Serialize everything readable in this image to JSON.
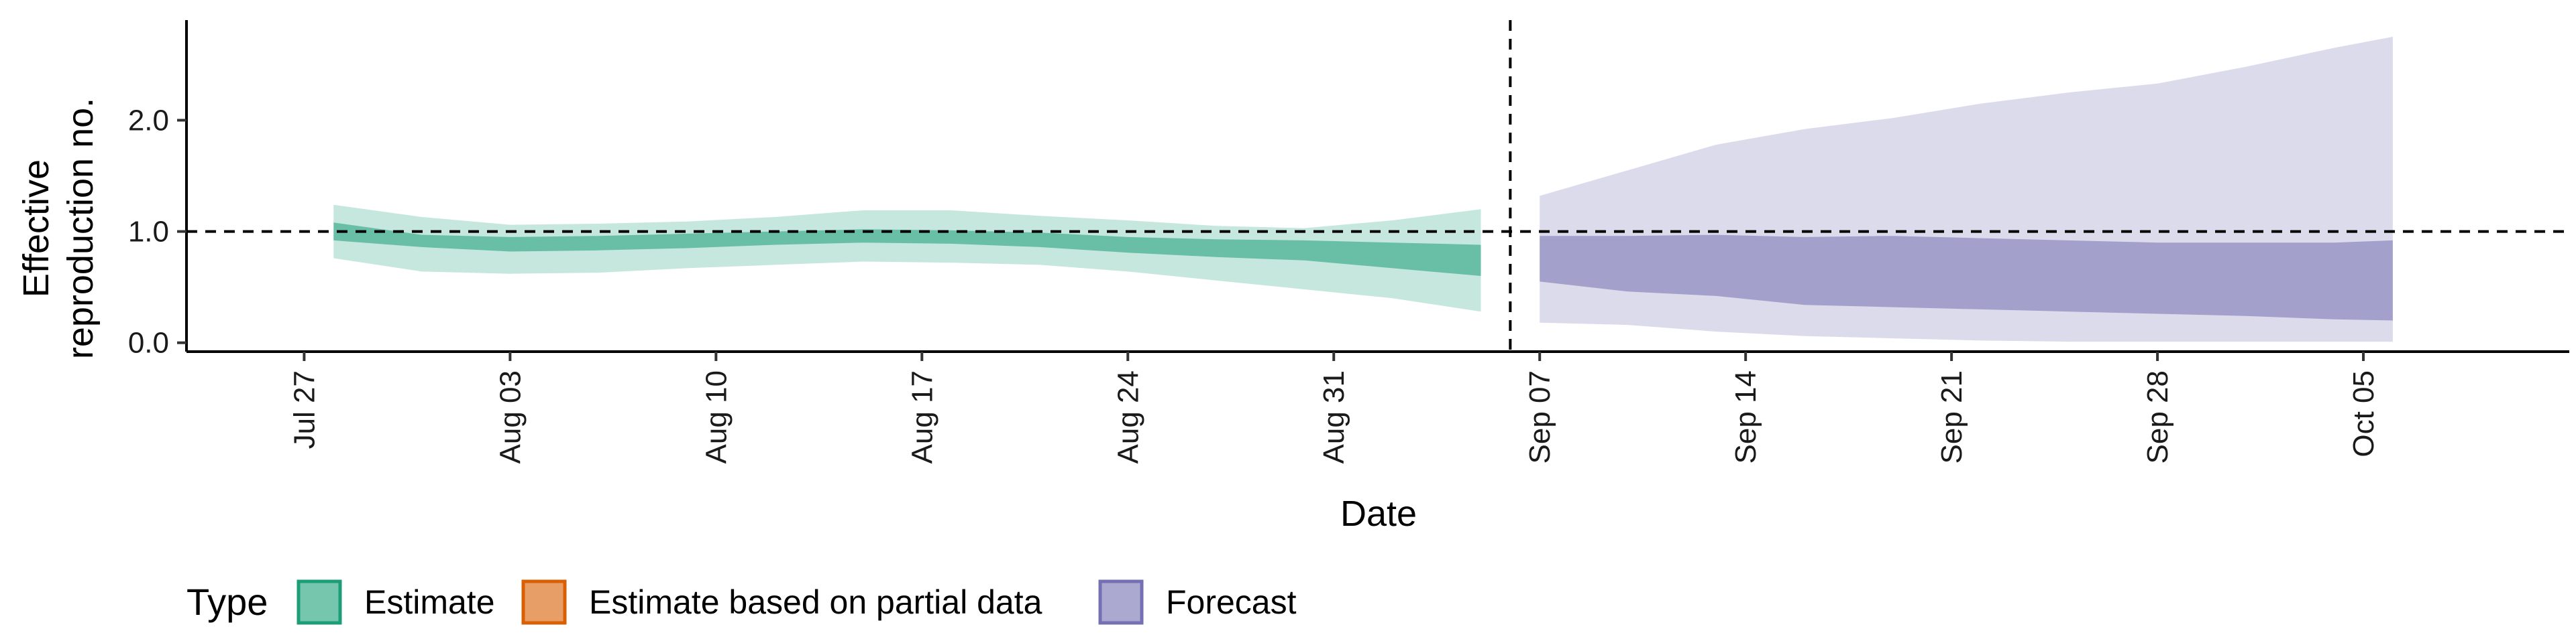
{
  "chart_data": {
    "type": "area",
    "xlabel": "Date",
    "ylabel_lines": [
      "Effective",
      "reproduction no."
    ],
    "ylim": [
      -0.08,
      2.9
    ],
    "yticks": [
      0.0,
      1.0,
      2.0
    ],
    "ytick_labels": [
      "0.0",
      "1.0",
      "2.0"
    ],
    "xlim": [
      "2020-07-23",
      "2020-10-12"
    ],
    "xticks": [
      "2020-07-27",
      "2020-08-03",
      "2020-08-10",
      "2020-08-17",
      "2020-08-24",
      "2020-08-31",
      "2020-09-07",
      "2020-09-14",
      "2020-09-21",
      "2020-09-28",
      "2020-10-05"
    ],
    "xtick_labels": [
      "Jul 27",
      "Aug 03",
      "Aug 10",
      "Aug 17",
      "Aug 24",
      "Aug 31",
      "Sep 07",
      "Sep 14",
      "Sep 21",
      "Sep 28",
      "Oct 05"
    ],
    "reference_line_y": 1.0,
    "forecast_start_date": "2020-09-06",
    "legend_title": "Type",
    "legend_position": "bottom",
    "grid": false,
    "series": [
      {
        "name": "Estimate",
        "color": "#1b9e77",
        "dates": [
          "2020-07-28",
          "2020-07-31",
          "2020-08-03",
          "2020-08-06",
          "2020-08-09",
          "2020-08-12",
          "2020-08-15",
          "2020-08-18",
          "2020-08-21",
          "2020-08-24",
          "2020-08-27",
          "2020-08-30",
          "2020-09-02",
          "2020-09-05"
        ],
        "lower_90": [
          0.76,
          0.64,
          0.62,
          0.63,
          0.67,
          0.7,
          0.73,
          0.72,
          0.7,
          0.64,
          0.56,
          0.48,
          0.4,
          0.28
        ],
        "lower_50": [
          0.92,
          0.86,
          0.82,
          0.83,
          0.85,
          0.88,
          0.9,
          0.89,
          0.86,
          0.81,
          0.77,
          0.74,
          0.67,
          0.6
        ],
        "upper_50": [
          1.08,
          0.97,
          0.95,
          0.96,
          0.98,
          1.0,
          1.02,
          1.01,
          0.99,
          0.95,
          0.93,
          0.92,
          0.9,
          0.88
        ],
        "upper_90": [
          1.24,
          1.13,
          1.06,
          1.07,
          1.09,
          1.13,
          1.19,
          1.19,
          1.14,
          1.1,
          1.05,
          1.03,
          1.1,
          1.2
        ]
      },
      {
        "name": "Estimate based on partial data",
        "color": "#d95f02",
        "dates": [],
        "lower_90": [],
        "lower_50": [],
        "upper_50": [],
        "upper_90": []
      },
      {
        "name": "Forecast",
        "color": "#7570b3",
        "dates": [
          "2020-09-07",
          "2020-09-10",
          "2020-09-13",
          "2020-09-16",
          "2020-09-19",
          "2020-09-22",
          "2020-09-25",
          "2020-09-28",
          "2020-10-01",
          "2020-10-04",
          "2020-10-06"
        ],
        "lower_90": [
          0.18,
          0.16,
          0.1,
          0.06,
          0.04,
          0.02,
          0.01,
          0.01,
          0.01,
          0.01,
          0.01
        ],
        "lower_50": [
          0.55,
          0.46,
          0.42,
          0.34,
          0.32,
          0.3,
          0.28,
          0.26,
          0.24,
          0.21,
          0.2
        ],
        "upper_50": [
          0.96,
          0.96,
          0.97,
          0.95,
          0.96,
          0.94,
          0.92,
          0.9,
          0.9,
          0.9,
          0.92
        ],
        "upper_90": [
          1.32,
          1.55,
          1.78,
          1.92,
          2.02,
          2.15,
          2.25,
          2.33,
          2.48,
          2.65,
          2.75
        ]
      }
    ]
  }
}
